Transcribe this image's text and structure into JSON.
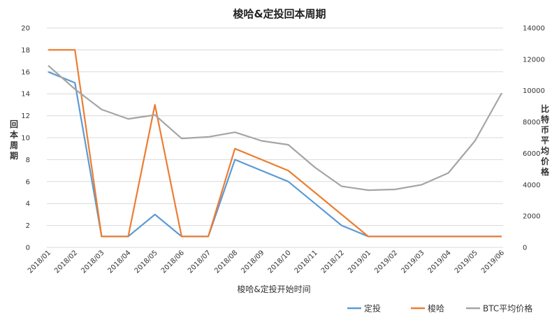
{
  "chart_data": {
    "type": "line",
    "title": "梭哈&定投回本周期",
    "xlabel": "梭哈&定投开始时间",
    "ylabel": "回本周期",
    "y2label": "比特币平均价格",
    "categories": [
      "2018/01",
      "2018/02",
      "2018/03",
      "2018/04",
      "2018/05",
      "2018/06",
      "2018/07",
      "2018/08",
      "2018/09",
      "2018/10",
      "2018/11",
      "2018/12",
      "2019/01",
      "2019/02",
      "2019/03",
      "2019/04",
      "2019/05",
      "2019/06"
    ],
    "ylim": [
      0,
      20
    ],
    "yticks": [
      0,
      2,
      4,
      6,
      8,
      10,
      12,
      14,
      16,
      18,
      20
    ],
    "y2lim": [
      0,
      14000
    ],
    "y2ticks": [
      0,
      2000,
      4000,
      6000,
      8000,
      10000,
      12000,
      14000
    ],
    "grid": true,
    "legend_position": "bottom-right",
    "series": [
      {
        "name": "定投",
        "axis": "left",
        "color": "#5b9bd5",
        "values": [
          16,
          15,
          1,
          1,
          3,
          1,
          1,
          8,
          7,
          6,
          4,
          2,
          1,
          1,
          1,
          1,
          1,
          1
        ]
      },
      {
        "name": "梭哈",
        "axis": "left",
        "color": "#ed7d31",
        "values": [
          18,
          18,
          1,
          1,
          13,
          1,
          1,
          9,
          8,
          7,
          5,
          3,
          1,
          1,
          1,
          1,
          1,
          1
        ]
      },
      {
        "name": "BTC平均价格",
        "axis": "right",
        "color": "#a5a5a5",
        "values": [
          11600,
          10100,
          8800,
          8200,
          8450,
          6950,
          7050,
          7350,
          6800,
          6550,
          5100,
          3900,
          3650,
          3700,
          4000,
          4750,
          6800,
          9850
        ]
      }
    ]
  }
}
